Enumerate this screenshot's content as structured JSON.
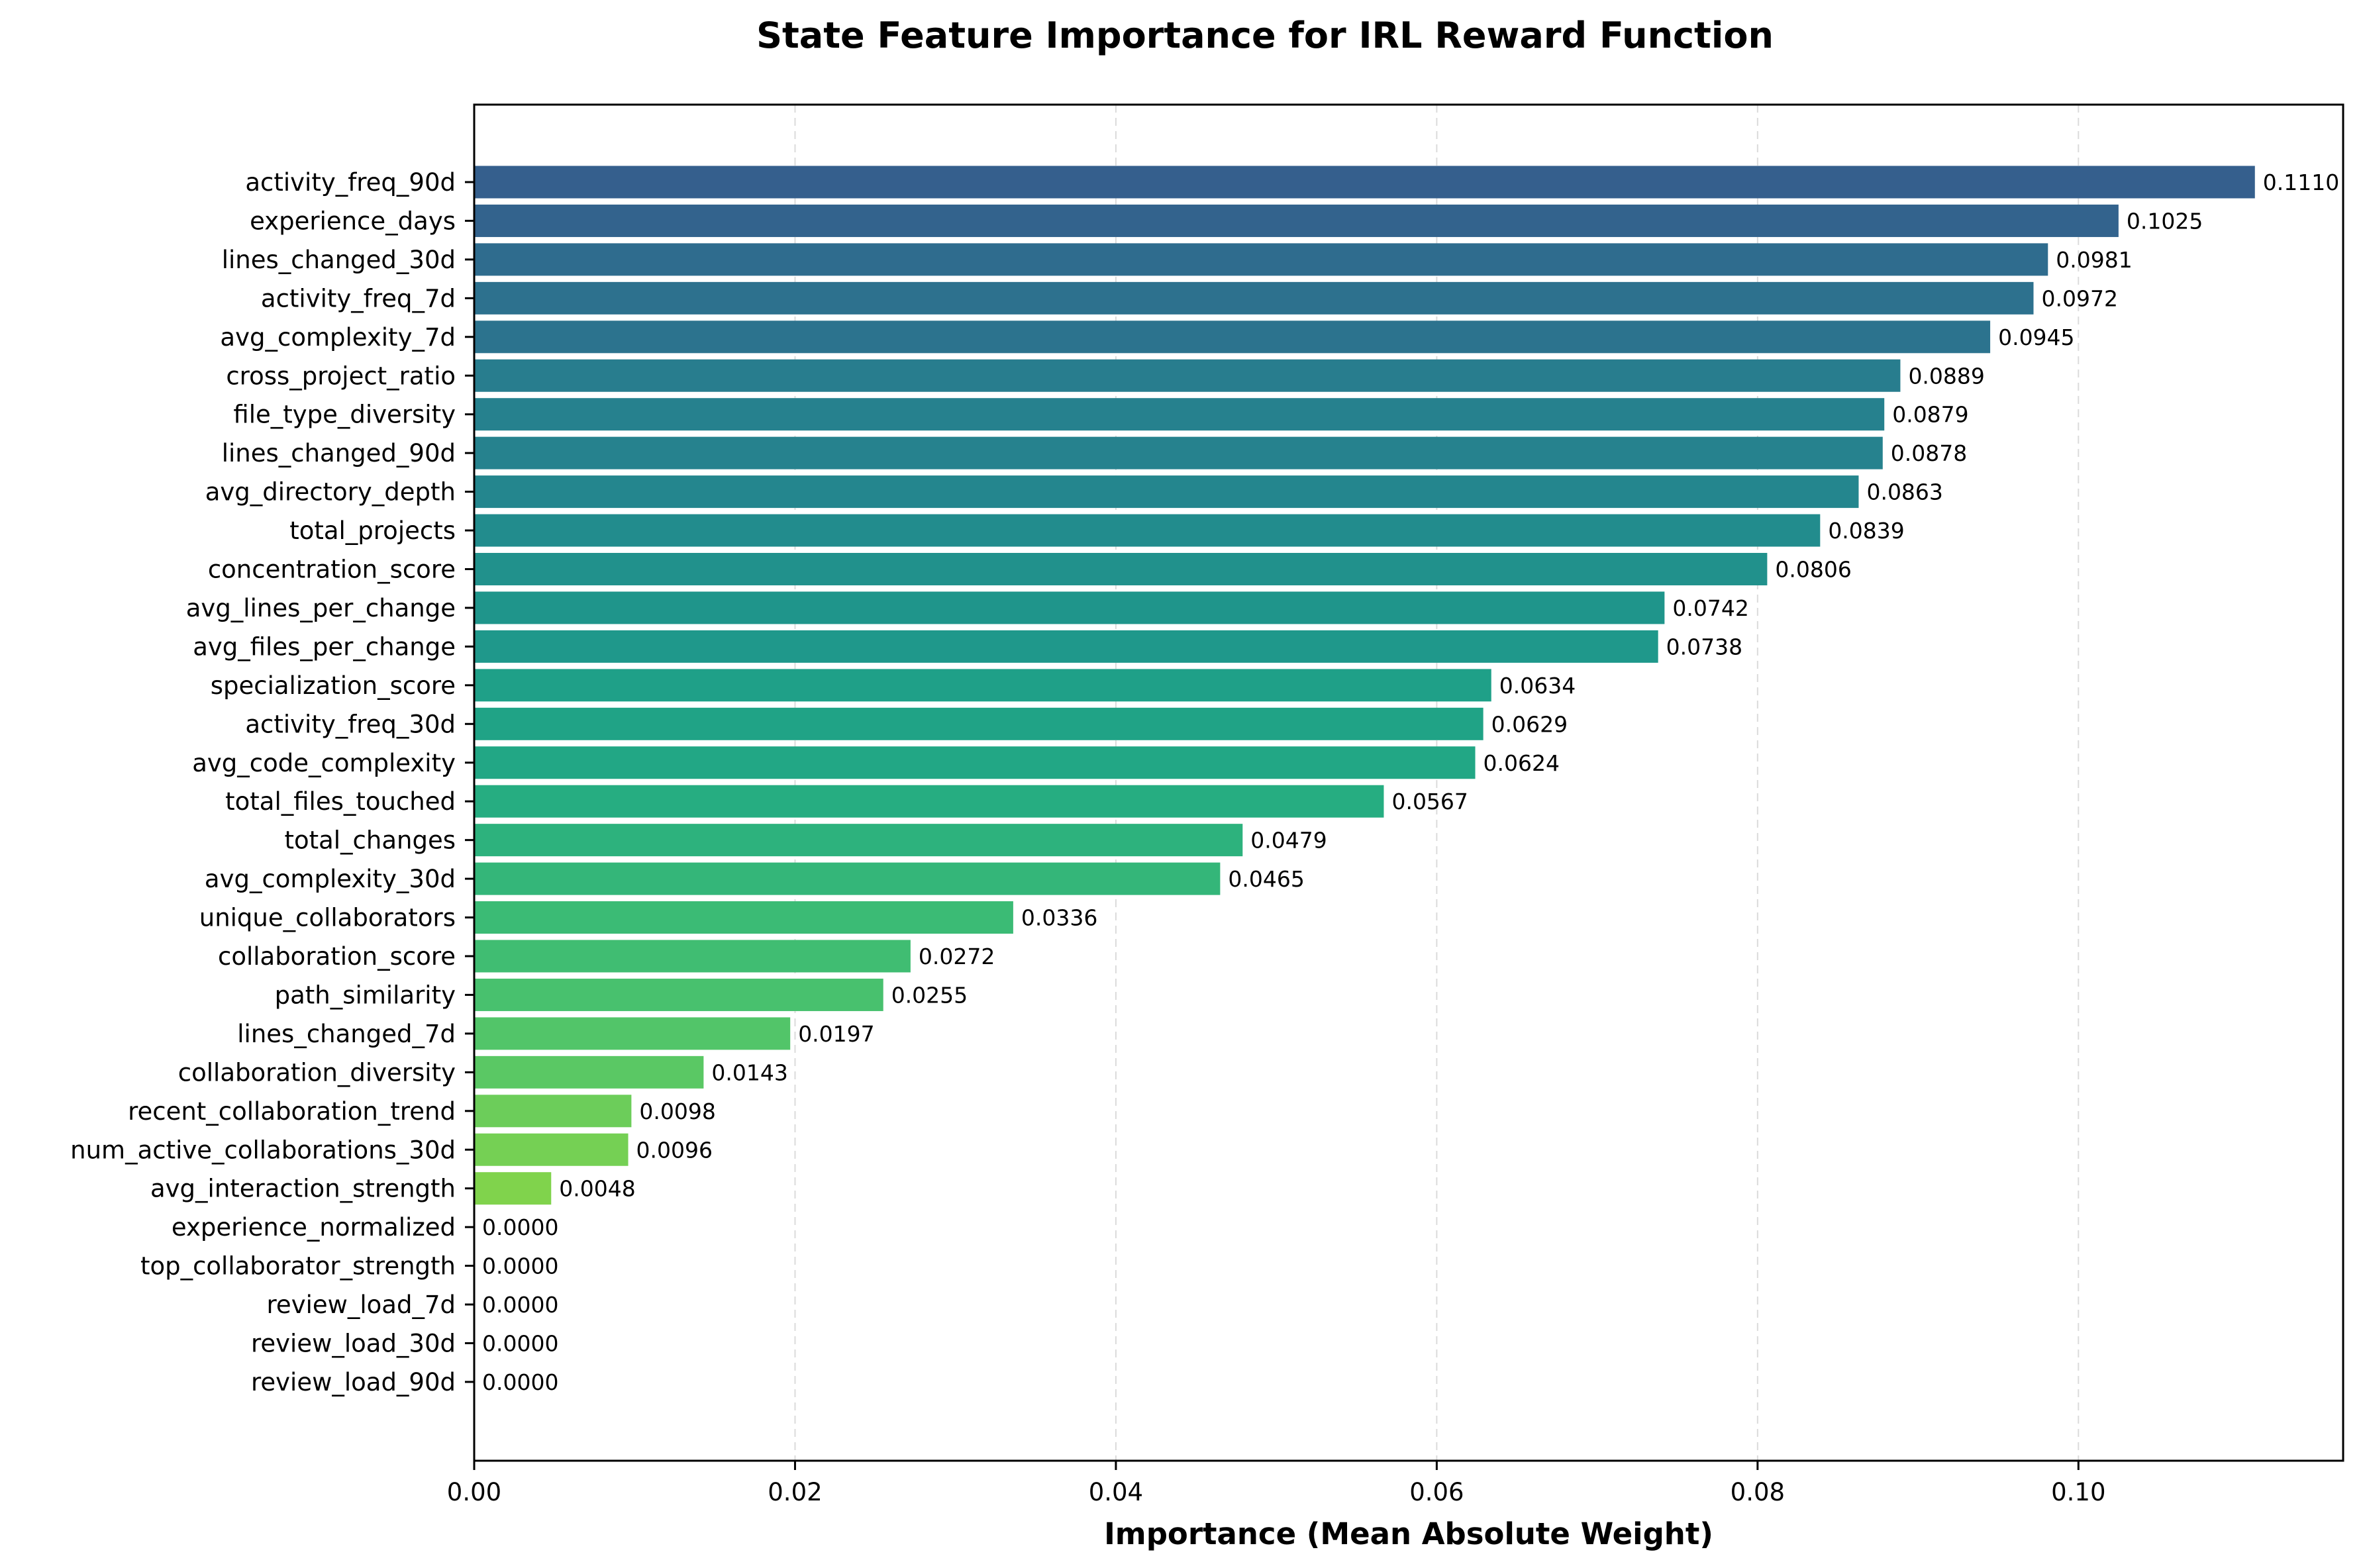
{
  "chart_data": {
    "type": "bar",
    "orientation": "horizontal",
    "title": "State Feature Importance for IRL Reward Function",
    "xlabel": "Importance (Mean Absolute Weight)",
    "ylabel": "",
    "xlim": [
      0,
      0.1165
    ],
    "xticks": [
      0.0,
      0.02,
      0.04,
      0.06,
      0.08,
      0.1
    ],
    "xtick_labels": [
      "0.00",
      "0.02",
      "0.04",
      "0.06",
      "0.08",
      "0.10"
    ],
    "grid": "x-dashed",
    "colormap": "viridis",
    "categories": [
      "activity_freq_90d",
      "experience_days",
      "lines_changed_30d",
      "activity_freq_7d",
      "avg_complexity_7d",
      "cross_project_ratio",
      "file_type_diversity",
      "lines_changed_90d",
      "avg_directory_depth",
      "total_projects",
      "concentration_score",
      "avg_lines_per_change",
      "avg_files_per_change",
      "specialization_score",
      "activity_freq_30d",
      "avg_code_complexity",
      "total_files_touched",
      "total_changes",
      "avg_complexity_30d",
      "unique_collaborators",
      "collaboration_score",
      "path_similarity",
      "lines_changed_7d",
      "collaboration_diversity",
      "recent_collaboration_trend",
      "num_active_collaborations_30d",
      "avg_interaction_strength",
      "experience_normalized",
      "top_collaborator_strength",
      "review_load_7d",
      "review_load_30d",
      "review_load_90d"
    ],
    "values": [
      0.111,
      0.1025,
      0.0981,
      0.0972,
      0.0945,
      0.0889,
      0.0879,
      0.0878,
      0.0863,
      0.0839,
      0.0806,
      0.0742,
      0.0738,
      0.0634,
      0.0629,
      0.0624,
      0.0567,
      0.0479,
      0.0465,
      0.0336,
      0.0272,
      0.0255,
      0.0197,
      0.0143,
      0.0098,
      0.0096,
      0.0048,
      0.0,
      0.0,
      0.0,
      0.0,
      0.0
    ],
    "value_labels": [
      "0.1110",
      "0.1025",
      "0.0981",
      "0.0972",
      "0.0945",
      "0.0889",
      "0.0879",
      "0.0878",
      "0.0863",
      "0.0839",
      "0.0806",
      "0.0742",
      "0.0738",
      "0.0634",
      "0.0629",
      "0.0624",
      "0.0567",
      "0.0479",
      "0.0465",
      "0.0336",
      "0.0272",
      "0.0255",
      "0.0197",
      "0.0143",
      "0.0098",
      "0.0096",
      "0.0048",
      "0.0000",
      "0.0000",
      "0.0000",
      "0.0000",
      "0.0000"
    ],
    "colors": [
      "#355f8d",
      "#33638d",
      "#2f6c8e",
      "#2d718e",
      "#2c738e",
      "#287d8e",
      "#26818e",
      "#26828e",
      "#24868e",
      "#228c8d",
      "#21918c",
      "#1f958b",
      "#1f988b",
      "#1fa088",
      "#20a386",
      "#22a785",
      "#26ad81",
      "#2db27d",
      "#34b679",
      "#3bbb75",
      "#40bd72",
      "#48c16e",
      "#52c569",
      "#5ac864",
      "#6ccd5a",
      "#75d054",
      "#80d34c",
      "#8bd646",
      "#95d840",
      "#a0da39",
      "#aadc32",
      "#b5de2b"
    ]
  }
}
